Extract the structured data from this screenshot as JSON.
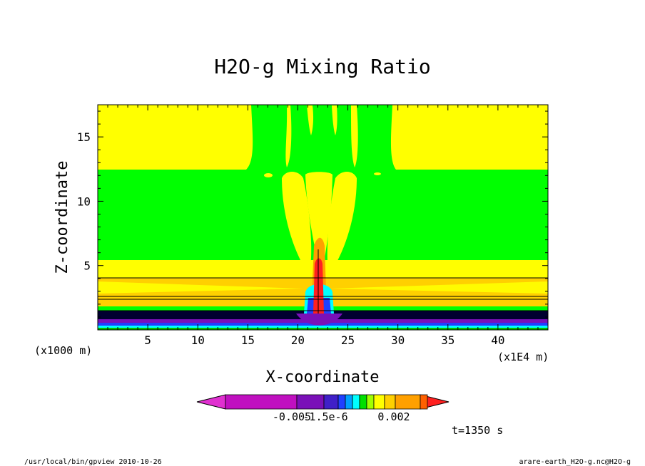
{
  "chart_data": {
    "type": "heatmap",
    "title": "H2O-g Mixing Ratio",
    "xlabel": "X-coordinate",
    "ylabel": "Z-coordinate",
    "x_unit": "(x1E4 m)",
    "y_unit": "(x1000 m)",
    "xlim": [
      0,
      45
    ],
    "ylim": [
      0,
      17.5
    ],
    "x_ticks": [
      "5",
      "10",
      "15",
      "20",
      "25",
      "30",
      "35",
      "40"
    ],
    "y_ticks": [
      "5",
      "10",
      "15"
    ],
    "time_label": "t=1350 s",
    "colorbar": {
      "tick_labels": [
        "-0.005",
        "-1.5e-6",
        "0.002"
      ],
      "colors": [
        "#e030d0",
        "#c010c0",
        "#7a10b8",
        "#4020c8",
        "#2040ff",
        "#00a0ff",
        "#00ffff",
        "#00e000",
        "#a0ff00",
        "#ffff00",
        "#ffd000",
        "#ffa000",
        "#ff6000",
        "#ff2020"
      ]
    },
    "fill_colors": {
      "background": "#00ff00",
      "yellow": "#ffff00",
      "gold": "#ffd000",
      "orange": "#ffa000",
      "dark_band": "#000030",
      "purple": "#7a10b8",
      "blue": "#2040ff",
      "cyan": "#00ffff",
      "red": "#ff2020"
    }
  },
  "footer": {
    "left": "/usr/local/bin/gpview  2010-10-26",
    "right": "arare-earth_H2O-g.nc@H2O-g"
  }
}
